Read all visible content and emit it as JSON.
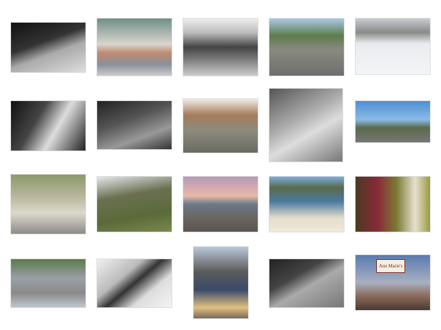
{
  "signs": [
    "Ann Marie's"
  ]
}
